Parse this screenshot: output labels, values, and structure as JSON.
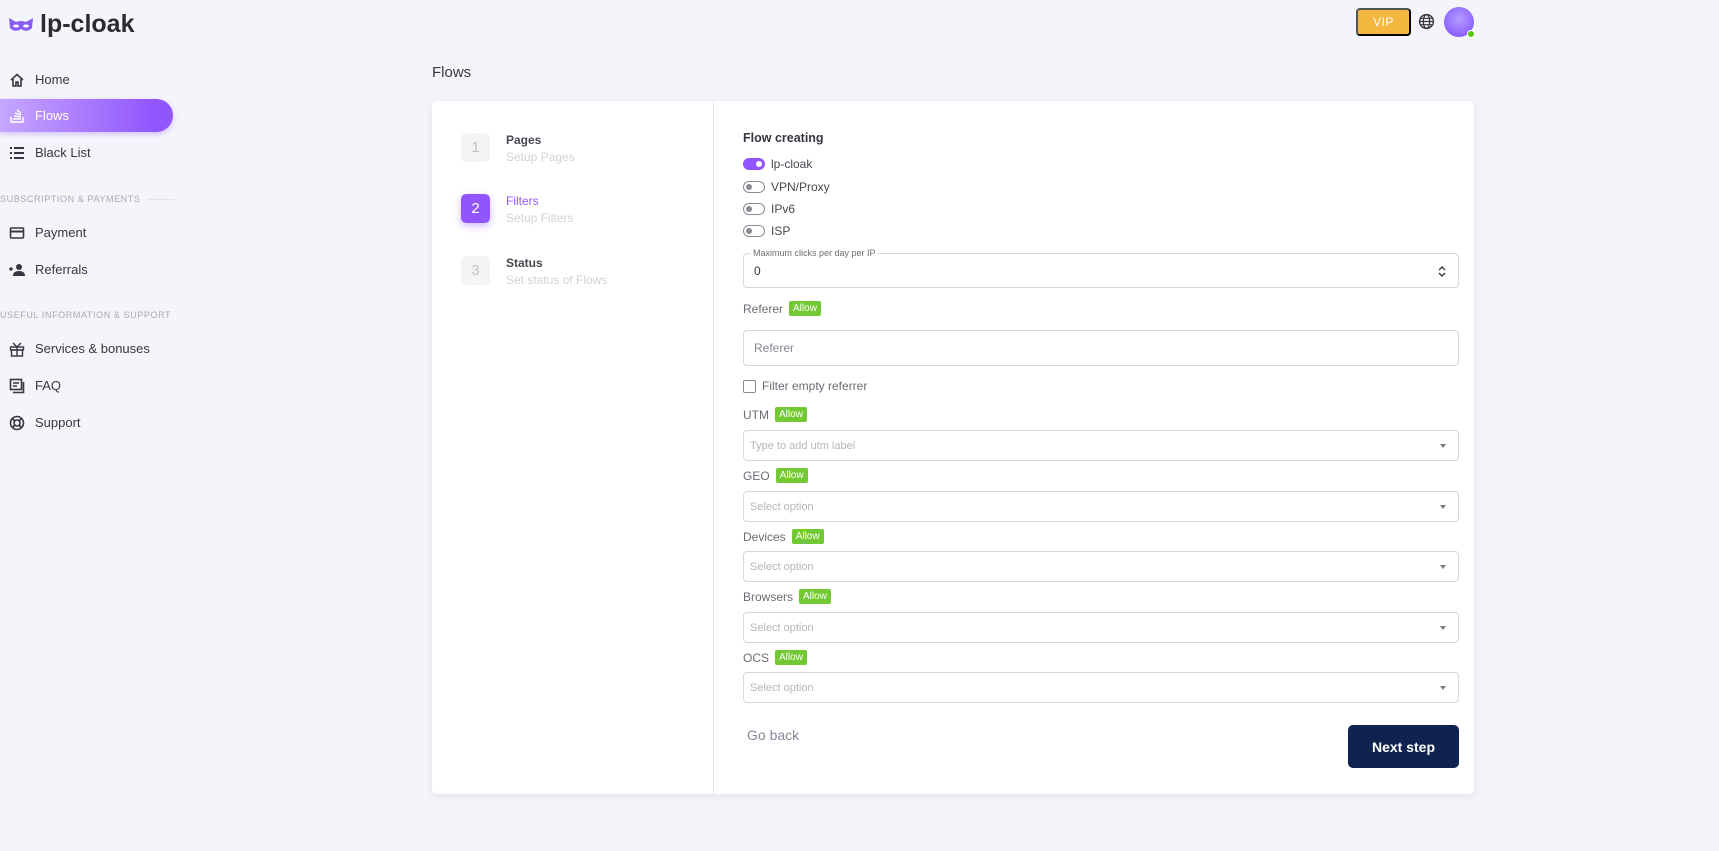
{
  "brand": {
    "name": "lp-cloak",
    "accent": "#9155fd"
  },
  "sidebar": {
    "items": [
      {
        "label": "Home",
        "icon": "home-icon"
      },
      {
        "label": "Flows",
        "icon": "stack-icon",
        "active": true
      },
      {
        "label": "Black List",
        "icon": "list-icon"
      },
      {
        "label": "Payment",
        "icon": "credit-card-icon"
      },
      {
        "label": "Referrals",
        "icon": "user-add-icon"
      },
      {
        "label": "Services & bonuses",
        "icon": "gift-icon"
      },
      {
        "label": "FAQ",
        "icon": "faq-icon"
      },
      {
        "label": "Support",
        "icon": "lifebuoy-icon"
      }
    ],
    "sections": [
      "SUBSCRIPTION & PAYMENTS",
      "USEFUL INFORMATION & SUPPORT"
    ]
  },
  "header": {
    "vip_label": "VIP",
    "vip_color": "#f4b740"
  },
  "page": {
    "title": "Flows"
  },
  "steps": [
    {
      "num": "1",
      "title": "Pages",
      "subtitle": "Setup Pages"
    },
    {
      "num": "2",
      "title": "Filters",
      "subtitle": "Setup Filters",
      "active": true
    },
    {
      "num": "3",
      "title": "Status",
      "subtitle": "Set status of Flows"
    }
  ],
  "form": {
    "title": "Flow creating",
    "toggles": [
      {
        "label": "lp-cloak",
        "on": true
      },
      {
        "label": "VPN/Proxy",
        "on": false
      },
      {
        "label": "IPv6",
        "on": false
      },
      {
        "label": "ISP",
        "on": false
      }
    ],
    "max_clicks": {
      "label": "Maximum clicks per day per IP",
      "value": "0"
    },
    "referer": {
      "label": "Referer",
      "badge": "Allow",
      "placeholder": "Referer"
    },
    "filter_empty": {
      "label": "Filter empty referrer",
      "checked": false
    },
    "selects": [
      {
        "label": "UTM",
        "badge": "Allow",
        "placeholder": "Type to add utm label"
      },
      {
        "label": "GEO",
        "badge": "Allow",
        "placeholder": "Select option"
      },
      {
        "label": "Devices",
        "badge": "Allow",
        "placeholder": "Select option"
      },
      {
        "label": "Browsers",
        "badge": "Allow",
        "placeholder": "Select option"
      },
      {
        "label": "OCS",
        "badge": "Allow",
        "placeholder": "Select option"
      }
    ],
    "go_back": "Go back",
    "next": "Next step"
  }
}
